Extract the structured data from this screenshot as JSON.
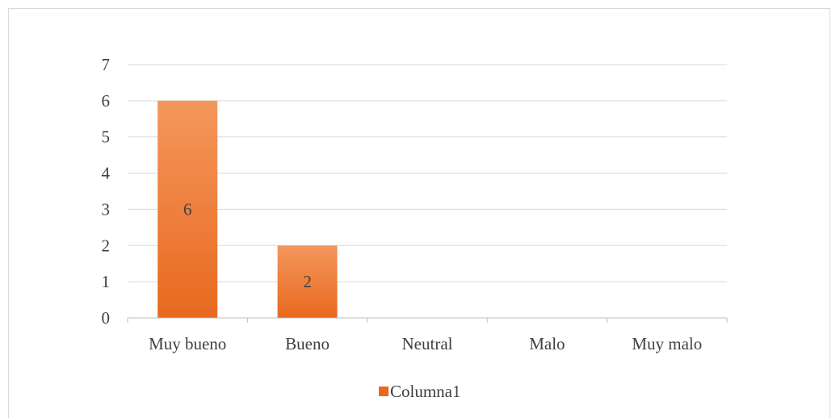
{
  "chart_data": {
    "type": "bar",
    "categories": [
      "Muy bueno",
      "Bueno",
      "Neutral",
      "Malo",
      "Muy malo"
    ],
    "series": [
      {
        "name": "Columna1",
        "values": [
          6,
          2,
          0,
          0,
          0
        ]
      }
    ],
    "data_labels": [
      "6",
      "2",
      "",
      "",
      ""
    ],
    "yticks": [
      "0",
      "1",
      "2",
      "3",
      "4",
      "5",
      "6",
      "7"
    ],
    "ylim": [
      0,
      7
    ],
    "grid": true,
    "legend_position": "bottom",
    "colors": {
      "bar_top": "#f4975c",
      "bar_bottom": "#e8691f",
      "grid": "#d9d9d9",
      "axis": "#bfbfbf"
    }
  }
}
